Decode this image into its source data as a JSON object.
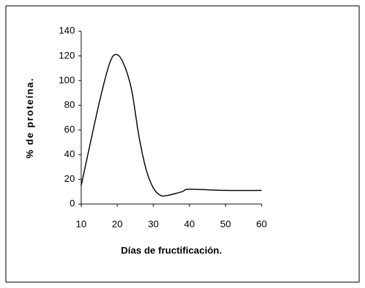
{
  "chart_data": {
    "type": "line",
    "x_label": "Días de fructificación.",
    "y_label": "% de proteína.",
    "x": [
      10,
      15,
      18,
      20,
      22,
      24,
      26,
      28,
      30,
      32,
      34,
      38,
      40,
      50,
      60
    ],
    "values": [
      15,
      82,
      115,
      121,
      112,
      92,
      55,
      28,
      13,
      7,
      7,
      10,
      12,
      11,
      11
    ],
    "color": "#000000",
    "xlim": [
      10,
      60
    ],
    "xticks": [
      10,
      20,
      30,
      40,
      50,
      60
    ],
    "ylim": [
      0,
      140
    ],
    "yticks": [
      0,
      20,
      40,
      60,
      80,
      100,
      120,
      140
    ],
    "grid": false
  }
}
